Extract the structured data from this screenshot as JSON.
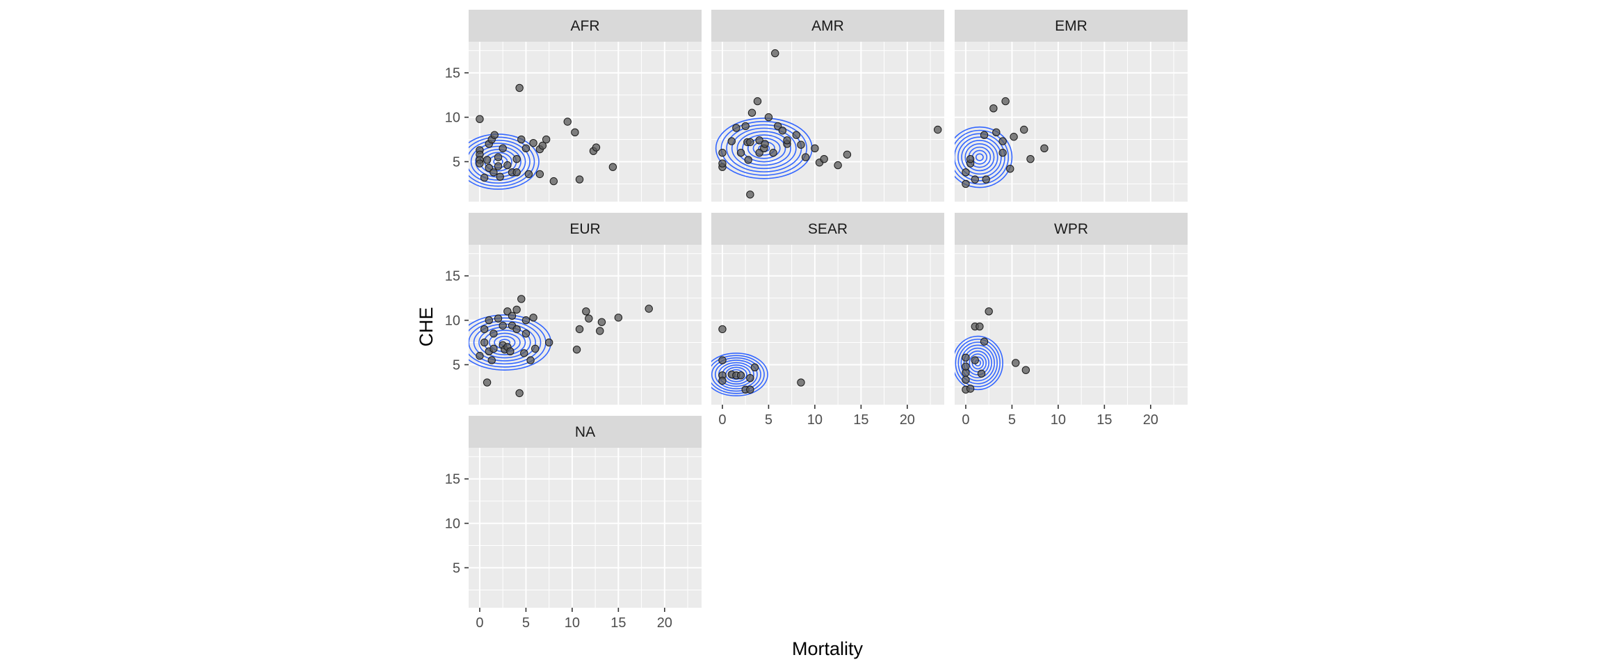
{
  "chart_data": {
    "type": "scatter",
    "xlabel": "Mortality",
    "ylabel": "CHE",
    "xlim": [
      -1.2,
      24.0
    ],
    "ylim": [
      0.5,
      18.5
    ],
    "x_ticks": [
      0,
      5,
      10,
      15,
      20
    ],
    "y_ticks": [
      5,
      10,
      15
    ],
    "grid": true,
    "overlay": "2d density contours",
    "colors": {
      "panel_bg": "#ebebeb",
      "strip_bg": "#d9d9d9",
      "grid": "#ffffff",
      "point": "#595959",
      "point_stroke": "#1a1a1a",
      "contour": "#3366ff"
    },
    "panels": [
      {
        "label": "AFR",
        "points": [
          [
            0,
            6.3
          ],
          [
            0,
            5.8
          ],
          [
            0,
            5.2
          ],
          [
            0,
            4.8
          ],
          [
            0,
            9.8
          ],
          [
            0.5,
            3.2
          ],
          [
            0.8,
            5.2
          ],
          [
            1,
            4.3
          ],
          [
            1,
            7
          ],
          [
            1.3,
            7.5
          ],
          [
            1.5,
            3.8
          ],
          [
            1.6,
            8
          ],
          [
            2,
            4.5
          ],
          [
            2,
            5.5
          ],
          [
            2.2,
            3.3
          ],
          [
            2.5,
            6.5
          ],
          [
            3,
            4.6
          ],
          [
            3.5,
            3.8
          ],
          [
            4,
            3.8
          ],
          [
            4,
            5.3
          ],
          [
            4.3,
            13.3
          ],
          [
            4.5,
            7.5
          ],
          [
            5,
            6.5
          ],
          [
            5.3,
            3.6
          ],
          [
            5.8,
            7.1
          ],
          [
            6.5,
            3.6
          ],
          [
            6.5,
            6.4
          ],
          [
            6.8,
            6.8
          ],
          [
            7.2,
            7.5
          ],
          [
            8,
            2.8
          ],
          [
            9.5,
            9.5
          ],
          [
            10.3,
            8.3
          ],
          [
            10.8,
            3
          ],
          [
            12.3,
            6.2
          ],
          [
            12.6,
            6.6
          ],
          [
            14.4,
            4.4
          ]
        ],
        "density": {
          "cx": 2.0,
          "cy": 5.0,
          "sx": 4.4,
          "sy": 3.1
        }
      },
      {
        "label": "AMR",
        "points": [
          [
            0,
            4.4
          ],
          [
            0,
            4.8
          ],
          [
            0,
            6
          ],
          [
            1,
            7.3
          ],
          [
            1.5,
            8.8
          ],
          [
            2,
            6
          ],
          [
            2.5,
            9
          ],
          [
            2.7,
            7.2
          ],
          [
            2.8,
            5.2
          ],
          [
            3,
            1.3
          ],
          [
            3,
            7.2
          ],
          [
            3.2,
            10.5
          ],
          [
            3.8,
            11.8
          ],
          [
            4,
            6
          ],
          [
            4,
            7.4
          ],
          [
            4.5,
            6.5
          ],
          [
            4.6,
            7
          ],
          [
            5,
            10
          ],
          [
            5.5,
            6
          ],
          [
            5.7,
            17.2
          ],
          [
            6,
            9
          ],
          [
            6.5,
            8.5
          ],
          [
            7,
            7
          ],
          [
            7,
            7.4
          ],
          [
            8,
            8
          ],
          [
            8.5,
            6.9
          ],
          [
            9,
            5.5
          ],
          [
            10,
            6.5
          ],
          [
            10.5,
            4.9
          ],
          [
            11,
            5.3
          ],
          [
            12.5,
            4.6
          ],
          [
            13.5,
            5.8
          ],
          [
            23.3,
            8.6
          ]
        ],
        "density": {
          "cx": 4.5,
          "cy": 6.5,
          "sx": 5.2,
          "sy": 3.4
        }
      },
      {
        "label": "EMR",
        "points": [
          [
            0,
            2.5
          ],
          [
            0,
            3.8
          ],
          [
            0.5,
            4.8
          ],
          [
            0.5,
            5.3
          ],
          [
            1,
            3
          ],
          [
            2,
            8
          ],
          [
            2.2,
            3
          ],
          [
            3,
            11
          ],
          [
            3.3,
            8.3
          ],
          [
            4,
            6
          ],
          [
            4,
            7.3
          ],
          [
            4.3,
            11.8
          ],
          [
            4.8,
            4.2
          ],
          [
            5.2,
            7.8
          ],
          [
            6.3,
            8.6
          ],
          [
            7,
            5.3
          ],
          [
            8.5,
            6.5
          ]
        ],
        "density": {
          "cx": 1.5,
          "cy": 5.5,
          "sx": 3.5,
          "sy": 3.4
        }
      },
      {
        "label": "EUR",
        "points": [
          [
            0,
            6
          ],
          [
            0.5,
            9
          ],
          [
            0.5,
            7.5
          ],
          [
            0.8,
            3
          ],
          [
            1,
            6.5
          ],
          [
            1,
            10
          ],
          [
            1.3,
            5.5
          ],
          [
            1.5,
            6.8
          ],
          [
            1.5,
            8.5
          ],
          [
            2,
            10.2
          ],
          [
            2.5,
            7.2
          ],
          [
            2.5,
            9.4
          ],
          [
            2.7,
            6.7
          ],
          [
            3,
            7
          ],
          [
            3,
            11
          ],
          [
            3.3,
            6.5
          ],
          [
            3.5,
            9.4
          ],
          [
            3.5,
            10.5
          ],
          [
            4,
            9
          ],
          [
            4,
            11.2
          ],
          [
            4.3,
            1.8
          ],
          [
            4.5,
            12.4
          ],
          [
            4.8,
            6.3
          ],
          [
            5,
            8.5
          ],
          [
            5,
            10
          ],
          [
            5.5,
            5.5
          ],
          [
            5.8,
            10.3
          ],
          [
            6,
            6.8
          ],
          [
            7.5,
            7.5
          ],
          [
            10.5,
            6.7
          ],
          [
            10.8,
            9
          ],
          [
            11.5,
            11
          ],
          [
            11.8,
            10.2
          ],
          [
            13,
            8.8
          ],
          [
            13.2,
            9.8
          ],
          [
            15,
            10.3
          ],
          [
            18.3,
            11.3
          ]
        ],
        "density": {
          "cx": 2.7,
          "cy": 7.5,
          "sx": 5.0,
          "sy": 3.1
        }
      },
      {
        "label": "SEAR",
        "points": [
          [
            0,
            9
          ],
          [
            0,
            5.5
          ],
          [
            0,
            3.8
          ],
          [
            0,
            3.2
          ],
          [
            1,
            3.9
          ],
          [
            1.5,
            3.8
          ],
          [
            2,
            3.8
          ],
          [
            2.5,
            2.2
          ],
          [
            3,
            2.2
          ],
          [
            3,
            3.5
          ],
          [
            3.5,
            4.7
          ],
          [
            8.5,
            3
          ]
        ],
        "density": {
          "cx": 1.5,
          "cy": 3.9,
          "sx": 3.4,
          "sy": 2.4
        }
      },
      {
        "label": "WPR",
        "points": [
          [
            0,
            2.2
          ],
          [
            0,
            3.3
          ],
          [
            0,
            4.1
          ],
          [
            0,
            4.8
          ],
          [
            0,
            5.8
          ],
          [
            0.5,
            2.3
          ],
          [
            1,
            5.5
          ],
          [
            1,
            9.3
          ],
          [
            1.5,
            9.3
          ],
          [
            1.7,
            4
          ],
          [
            2,
            7.6
          ],
          [
            2.5,
            11
          ],
          [
            5.4,
            5.2
          ],
          [
            6.5,
            4.4
          ]
        ],
        "density": {
          "cx": 1.3,
          "cy": 5.2,
          "sx": 2.7,
          "sy": 3.0
        }
      },
      {
        "label": "NA",
        "points": [],
        "density": null
      }
    ]
  }
}
